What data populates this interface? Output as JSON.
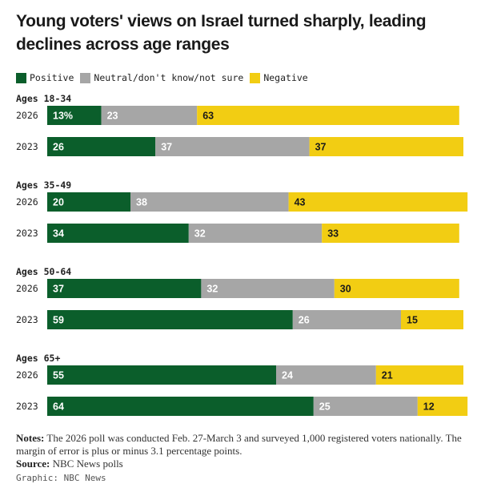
{
  "title": "Young voters' views on Israel turned sharply, leading declines across age ranges",
  "colors": {
    "positive": "#0b5e2b",
    "neutral": "#a6a6a6",
    "negative": "#f2cd13"
  },
  "notes_label": "Notes:",
  "notes_text": "The 2026 poll was conducted Feb. 27-March 3 and surveyed 1,000 registered voters nationally. The margin of error is plus or minus 3.1 percentage points.",
  "source_label": "Source:",
  "source_text": "NBC News polls",
  "credit": "Graphic: NBC News",
  "chart_data": {
    "type": "bar",
    "orientation": "horizontal",
    "stacked": true,
    "legend": [
      "Positive",
      "Neutral/don't know/not sure",
      "Negative"
    ],
    "legend_placement": "top-left",
    "groups": [
      {
        "label": "Ages 18-34",
        "rows": [
          {
            "year": "2026",
            "positive": 13,
            "neutral": 23,
            "negative": 63,
            "positive_label": "13%",
            "neutral_label": "23",
            "negative_label": "63"
          },
          {
            "year": "2023",
            "positive": 26,
            "neutral": 37,
            "negative": 37,
            "positive_label": "26",
            "neutral_label": "37",
            "negative_label": "37"
          }
        ]
      },
      {
        "label": "Ages 35-49",
        "rows": [
          {
            "year": "2026",
            "positive": 20,
            "neutral": 38,
            "negative": 43,
            "positive_label": "20",
            "neutral_label": "38",
            "negative_label": "43"
          },
          {
            "year": "2023",
            "positive": 34,
            "neutral": 32,
            "negative": 33,
            "positive_label": "34",
            "neutral_label": "32",
            "negative_label": "33"
          }
        ]
      },
      {
        "label": "Ages 50-64",
        "rows": [
          {
            "year": "2026",
            "positive": 37,
            "neutral": 32,
            "negative": 30,
            "positive_label": "37",
            "neutral_label": "32",
            "negative_label": "30"
          },
          {
            "year": "2023",
            "positive": 59,
            "neutral": 26,
            "negative": 15,
            "positive_label": "59",
            "neutral_label": "26",
            "negative_label": "15"
          }
        ]
      },
      {
        "label": "Ages 65+",
        "rows": [
          {
            "year": "2026",
            "positive": 55,
            "neutral": 24,
            "negative": 21,
            "positive_label": "55",
            "neutral_label": "24",
            "negative_label": "21"
          },
          {
            "year": "2023",
            "positive": 64,
            "neutral": 25,
            "negative": 12,
            "positive_label": "64",
            "neutral_label": "25",
            "negative_label": "12"
          }
        ]
      }
    ]
  }
}
